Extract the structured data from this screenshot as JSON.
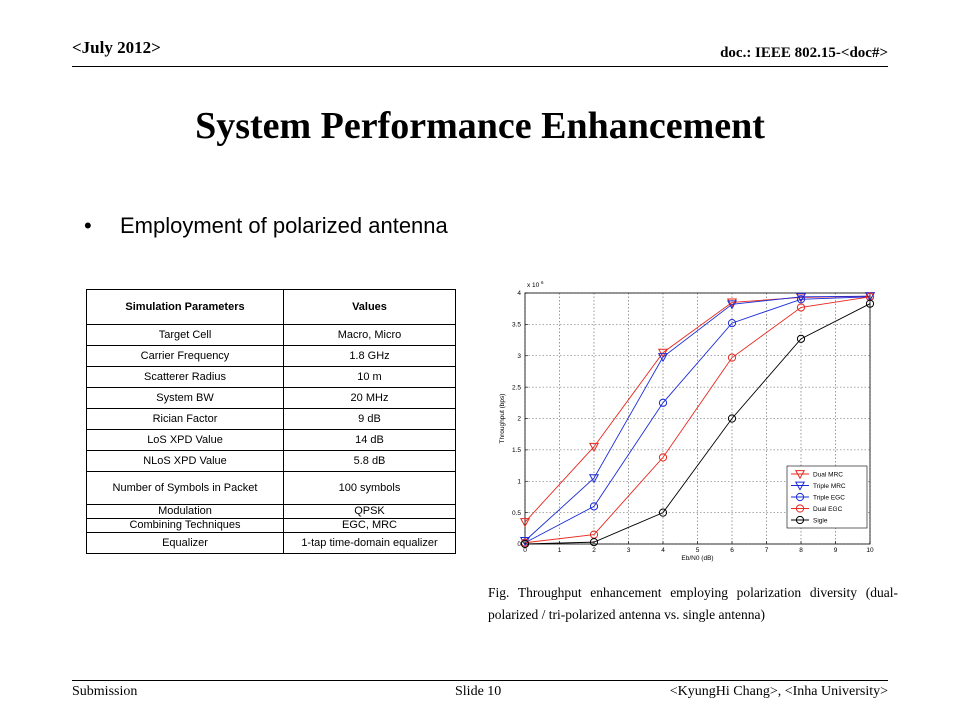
{
  "header": {
    "date": "<July 2012>",
    "doc": "doc.: IEEE 802.15-<doc#>"
  },
  "title": "System Performance Enhancement",
  "bullet": {
    "symbol": "•",
    "text": "Employment of polarized antenna"
  },
  "table": {
    "headers": [
      "Simulation Parameters",
      "Values"
    ],
    "rows": [
      [
        "Target Cell",
        "Macro, Micro"
      ],
      [
        "Carrier Frequency",
        "1.8 GHz"
      ],
      [
        "Scatterer Radius",
        "10 m"
      ],
      [
        "System BW",
        "20 MHz"
      ],
      [
        "Rician Factor",
        "9 dB"
      ],
      [
        "LoS XPD Value",
        "14 dB"
      ],
      [
        "NLoS XPD Value",
        "5.8 dB"
      ],
      [
        "Number of Symbols in Packet",
        "100 symbols"
      ],
      [
        "Modulation",
        "QPSK"
      ],
      [
        "Combining Techniques",
        "EGC, MRC"
      ],
      [
        "Equalizer",
        "1-tap time-domain equalizer"
      ]
    ]
  },
  "chart_data": {
    "type": "line",
    "xlabel": "Eb/N0 (dB)",
    "ylabel": "Throughput (bps)",
    "y_multiplier": "x 10",
    "y_multiplier_exp": "6",
    "xlim": [
      0,
      10
    ],
    "ylim": [
      0,
      4
    ],
    "xticks": [
      0,
      1,
      2,
      3,
      4,
      5,
      6,
      7,
      8,
      9,
      10
    ],
    "yticks": [
      0,
      0.5,
      1,
      1.5,
      2,
      2.5,
      3,
      3.5,
      4
    ],
    "grid": true,
    "legend_position": "bottom-right",
    "x": [
      0,
      2,
      4,
      6,
      8,
      10
    ],
    "series": [
      {
        "name": "Dual MRC",
        "color": "#e8281e",
        "marker": "triangle-down",
        "values": [
          0.35,
          1.55,
          3.05,
          3.85,
          3.93,
          3.95
        ]
      },
      {
        "name": "Triple MRC",
        "color": "#1a2bd8",
        "marker": "triangle-down",
        "values": [
          0.05,
          1.05,
          2.98,
          3.82,
          3.94,
          3.95
        ]
      },
      {
        "name": "Triple EGC",
        "color": "#1a2bd8",
        "marker": "circle",
        "values": [
          0.02,
          0.6,
          2.25,
          3.52,
          3.9,
          3.94
        ]
      },
      {
        "name": "Dual EGC",
        "color": "#e8281e",
        "marker": "circle",
        "values": [
          0.02,
          0.15,
          1.38,
          2.97,
          3.77,
          3.94
        ]
      },
      {
        "name": "Sigle",
        "color": "#000000",
        "marker": "circle",
        "values": [
          0.0,
          0.03,
          0.5,
          2.0,
          3.27,
          3.83
        ]
      }
    ]
  },
  "caption": "Fig. Throughput enhancement employing polarization diversity (dual-polarized / tri-polarized antenna vs. single antenna)",
  "footer": {
    "left": "Submission",
    "middle": "Slide 10",
    "right": "<KyungHi Chang>, <Inha University>"
  }
}
